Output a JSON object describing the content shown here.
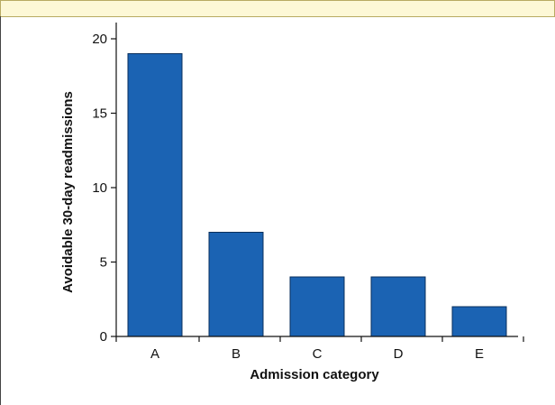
{
  "chart_data": {
    "type": "bar",
    "title": "",
    "xlabel": "Admission category",
    "ylabel": "Avoidable 30-day readmissions",
    "categories": [
      "A",
      "B",
      "C",
      "D",
      "E"
    ],
    "values": [
      19,
      7,
      4,
      4,
      2
    ],
    "ylim": [
      0,
      21
    ],
    "yticks": [
      0,
      5,
      10,
      15,
      20
    ],
    "ytick_labels": [
      "0",
      "5",
      "10",
      "15",
      "20"
    ],
    "grid": false,
    "legend": "none",
    "bar_color": "#1b63b3",
    "bar_edge_color": "#0a2f5c"
  }
}
